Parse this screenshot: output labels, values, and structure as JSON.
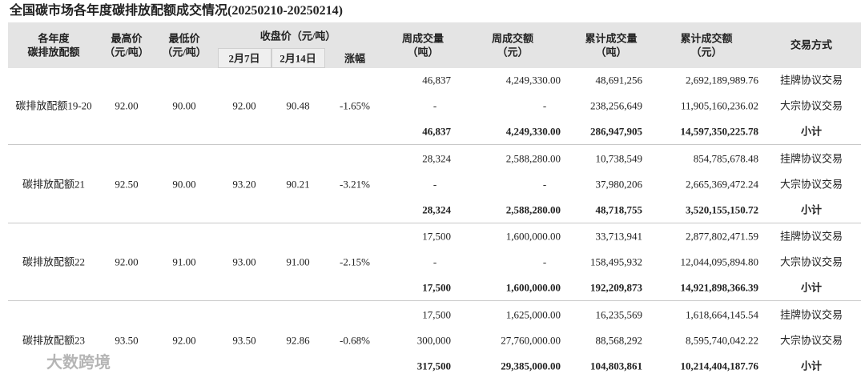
{
  "title": "全国碳市场各年度碳排放配额成交情况(20250210-20250214)",
  "table": {
    "header": {
      "name": [
        "各年度",
        "碳排放配额"
      ],
      "high": [
        "最高价",
        "（元/吨）"
      ],
      "low": [
        "最低价",
        "（元/吨）"
      ],
      "close": "收盘价（元/吨）",
      "close_a": "2月7日",
      "close_b": "2月14日",
      "change": "涨幅",
      "week_volume": [
        "周成交量",
        "（吨）"
      ],
      "week_amount": [
        "周成交额",
        "（元）"
      ],
      "cum_volume": [
        "累计成交量",
        "（吨）"
      ],
      "cum_amount": [
        "累计成交额",
        "（元）"
      ],
      "method": "交易方式"
    },
    "groups": [
      {
        "name": "碳排放配额19-20",
        "high": "92.00",
        "low": "90.00",
        "close_a": "92.00",
        "close_b": "90.48",
        "change": "-1.65%",
        "rows": [
          [
            "46,837",
            "4,249,330.00",
            "48,691,256",
            "2,692,189,989.76",
            "挂牌协议交易"
          ],
          [
            "-",
            "-",
            "238,256,649",
            "11,905,160,236.02",
            "大宗协议交易"
          ],
          [
            "46,837",
            "4,249,330.00",
            "286,947,905",
            "14,597,350,225.78",
            "小计"
          ]
        ]
      },
      {
        "name": "碳排放配额21",
        "high": "92.50",
        "low": "90.00",
        "close_a": "93.20",
        "close_b": "90.21",
        "change": "-3.21%",
        "rows": [
          [
            "28,324",
            "2,588,280.00",
            "10,738,549",
            "854,785,678.48",
            "挂牌协议交易"
          ],
          [
            "-",
            "-",
            "37,980,206",
            "2,665,369,472.24",
            "大宗协议交易"
          ],
          [
            "28,324",
            "2,588,280.00",
            "48,718,755",
            "3,520,155,150.72",
            "小计"
          ]
        ]
      },
      {
        "name": "碳排放配额22",
        "high": "92.00",
        "low": "91.00",
        "close_a": "93.00",
        "close_b": "91.00",
        "change": "-2.15%",
        "rows": [
          [
            "17,500",
            "1,600,000.00",
            "33,713,941",
            "2,877,802,471.59",
            "挂牌协议交易"
          ],
          [
            "-",
            "-",
            "158,495,932",
            "12,044,095,894.80",
            "大宗协议交易"
          ],
          [
            "17,500",
            "1,600,000.00",
            "192,209,873",
            "14,921,898,366.39",
            "小计"
          ]
        ]
      },
      {
        "name": "碳排放配额23",
        "high": "93.50",
        "low": "92.00",
        "close_a": "93.50",
        "close_b": "92.86",
        "change": "-0.68%",
        "rows": [
          [
            "17,500",
            "1,625,000.00",
            "16,235,569",
            "1,618,664,145.54",
            "挂牌协议交易"
          ],
          [
            "300,000",
            "27,760,000.00",
            "88,568,292",
            "8,595,740,042.22",
            "大宗协议交易"
          ],
          [
            "317,500",
            "29,385,000.00",
            "104,803,861",
            "10,214,404,187.76",
            "小计"
          ]
        ]
      }
    ]
  },
  "watermark": "大数跨境"
}
